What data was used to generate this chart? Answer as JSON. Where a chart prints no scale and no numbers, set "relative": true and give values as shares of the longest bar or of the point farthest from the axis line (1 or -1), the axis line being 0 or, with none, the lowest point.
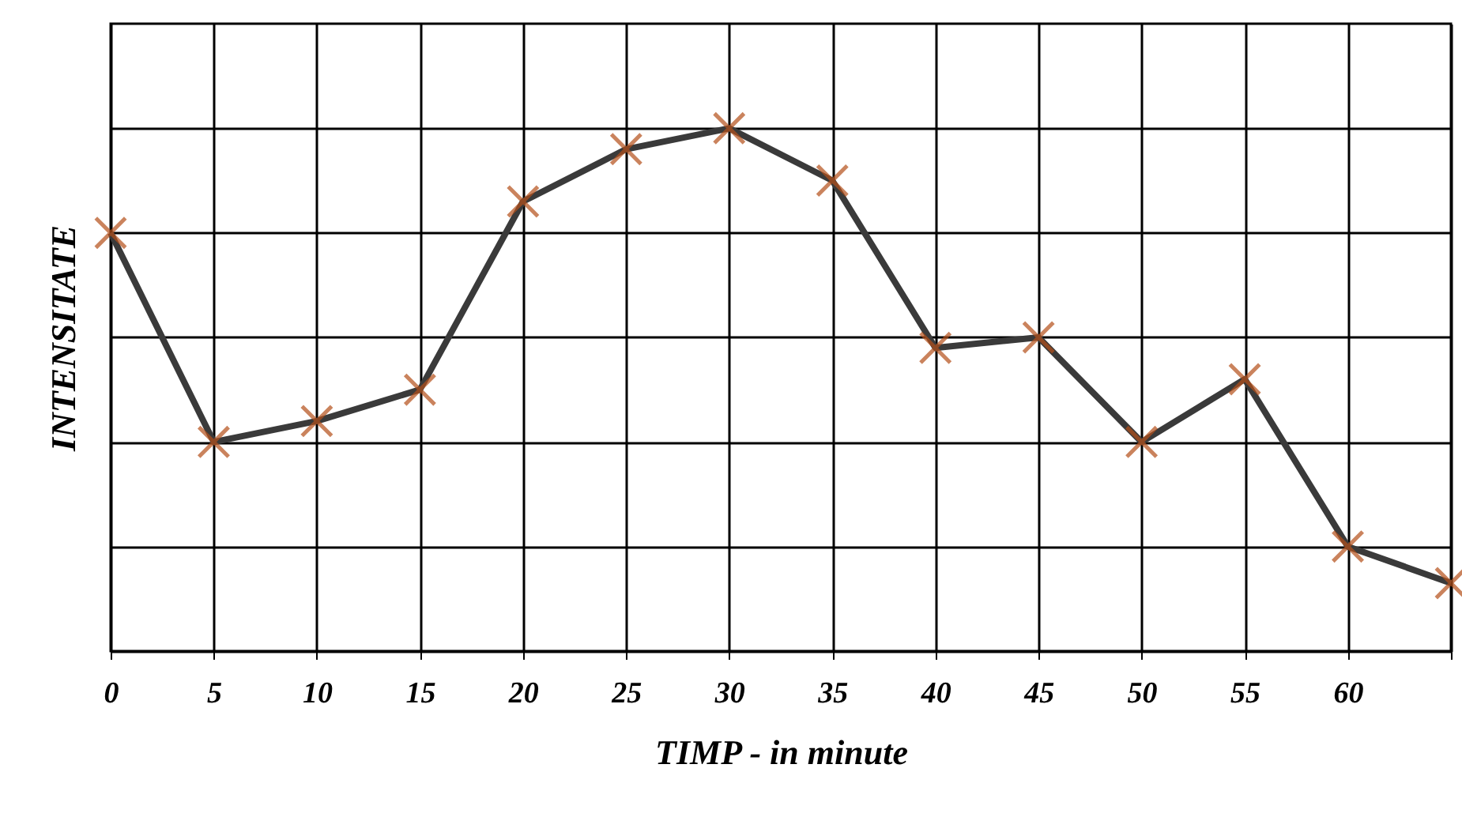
{
  "chart_data": {
    "type": "line",
    "xlabel": "TIMP - in minute",
    "ylabel": "INTENSITATE",
    "relative": true,
    "grid": true,
    "marker": "cross",
    "line_style": "solid",
    "xlim": [
      0,
      65
    ],
    "xticks": [
      0,
      5,
      10,
      15,
      20,
      25,
      30,
      35,
      40,
      45,
      50,
      55,
      60,
      {
        "value": 65,
        "label": null
      }
    ],
    "x": [
      0,
      5,
      10,
      15,
      20,
      25,
      30,
      35,
      40,
      45,
      50,
      55,
      60,
      65
    ],
    "series": [
      {
        "color": "#3a3a3a",
        "colors": [
          "#b5501a",
          "#b5501a",
          "#b5501a",
          "#b5501a",
          "#b5501a",
          "#b5501a",
          "#b5501a",
          "#b5501a",
          "#b5501a",
          "#b5501a",
          "#b5501a",
          "#b5501a",
          "#b5501a",
          "#b5501a"
        ],
        "values": [
          0.8,
          0.4,
          0.44,
          0.5,
          0.86,
          0.96,
          1,
          0.9,
          0.58,
          0.6,
          0.4,
          0.52,
          0.2,
          0.13
        ]
      }
    ]
  }
}
